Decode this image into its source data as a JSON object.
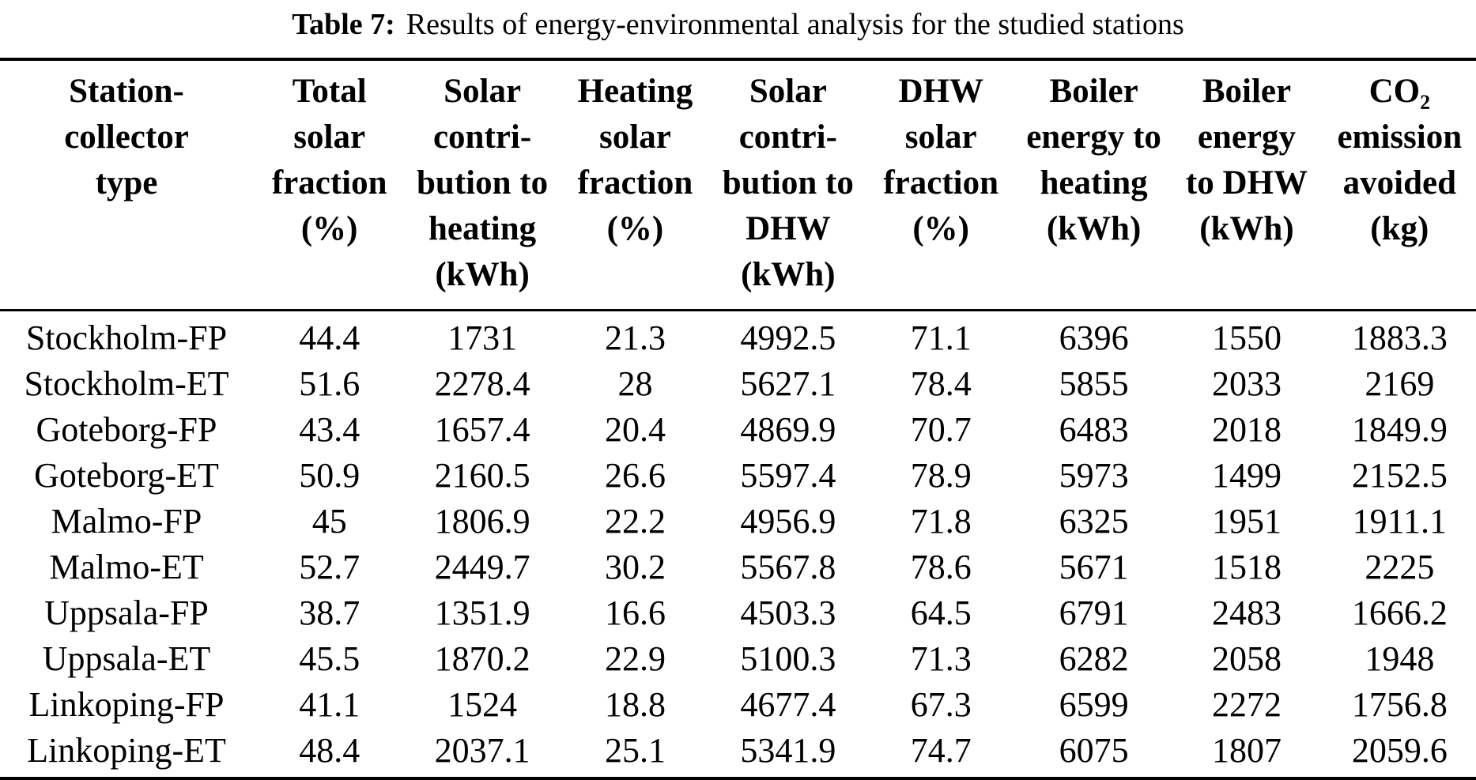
{
  "colors": {
    "background": "#ffffff",
    "text": "#000000",
    "rule": "#000000"
  },
  "caption": {
    "label": "Table 7:",
    "text": "Results of energy-environmental analysis for the studied stations"
  },
  "table": {
    "columns": [
      {
        "name": "station-collector-type",
        "lines": [
          "Station-",
          "collector",
          "type"
        ]
      },
      {
        "name": "total-solar-fraction",
        "lines": [
          "Total",
          "solar",
          "fraction",
          "(%)"
        ]
      },
      {
        "name": "solar-contribution-heating",
        "lines": [
          "Solar",
          "contri-",
          "bution to",
          "heating",
          "(kWh)"
        ]
      },
      {
        "name": "heating-solar-fraction",
        "lines": [
          "Heating",
          "solar",
          "fraction",
          "(%)"
        ]
      },
      {
        "name": "solar-contribution-dhw",
        "lines": [
          "Solar",
          "contri-",
          "bution to",
          "DHW",
          "(kWh)"
        ]
      },
      {
        "name": "dhw-solar-fraction",
        "lines": [
          "DHW",
          "solar",
          "fraction",
          "(%)"
        ]
      },
      {
        "name": "boiler-energy-heating",
        "lines": [
          "Boiler",
          "energy to",
          "heating",
          "(kWh)"
        ]
      },
      {
        "name": "boiler-energy-dhw",
        "lines": [
          "Boiler",
          "energy",
          "to DHW",
          "(kWh)"
        ]
      },
      {
        "name": "co2-emission-avoided",
        "lines": [
          "CO₂",
          "emission",
          "avoided",
          "(kg)"
        ]
      }
    ],
    "rows": [
      [
        "Stockholm-FP",
        "44.4",
        "1731",
        "21.3",
        "4992.5",
        "71.1",
        "6396",
        "1550",
        "1883.3"
      ],
      [
        "Stockholm-ET",
        "51.6",
        "2278.4",
        "28",
        "5627.1",
        "78.4",
        "5855",
        "2033",
        "2169"
      ],
      [
        "Goteborg-FP",
        "43.4",
        "1657.4",
        "20.4",
        "4869.9",
        "70.7",
        "6483",
        "2018",
        "1849.9"
      ],
      [
        "Goteborg-ET",
        "50.9",
        "2160.5",
        "26.6",
        "5597.4",
        "78.9",
        "5973",
        "1499",
        "2152.5"
      ],
      [
        "Malmo-FP",
        "45",
        "1806.9",
        "22.2",
        "4956.9",
        "71.8",
        "6325",
        "1951",
        "1911.1"
      ],
      [
        "Malmo-ET",
        "52.7",
        "2449.7",
        "30.2",
        "5567.8",
        "78.6",
        "5671",
        "1518",
        "2225"
      ],
      [
        "Uppsala-FP",
        "38.7",
        "1351.9",
        "16.6",
        "4503.3",
        "64.5",
        "6791",
        "2483",
        "1666.2"
      ],
      [
        "Uppsala-ET",
        "45.5",
        "1870.2",
        "22.9",
        "5100.3",
        "71.3",
        "6282",
        "2058",
        "1948"
      ],
      [
        "Linkoping-FP",
        "41.1",
        "1524",
        "18.8",
        "4677.4",
        "67.3",
        "6599",
        "2272",
        "1756.8"
      ],
      [
        "Linkoping-ET",
        "48.4",
        "2037.1",
        "25.1",
        "5341.9",
        "74.7",
        "6075",
        "1807",
        "2059.6"
      ]
    ]
  }
}
